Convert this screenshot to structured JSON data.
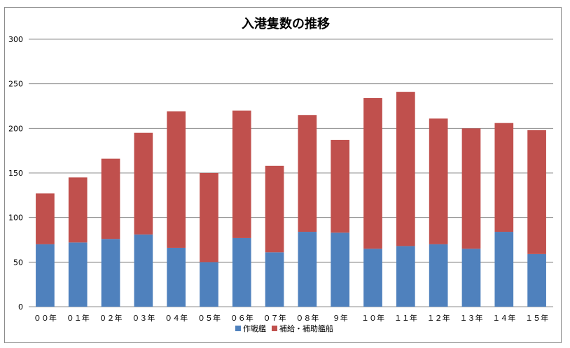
{
  "chart_data": {
    "type": "bar",
    "stacked": true,
    "title": "入港隻数の推移",
    "categories": [
      "００年",
      "０１年",
      "０２年",
      "０３年",
      "０４年",
      "０５年",
      "０６年",
      "０７年",
      "０８年",
      "９年",
      "１０年",
      "１１年",
      "１２年",
      "１３年",
      "１４年",
      "１５年"
    ],
    "series": [
      {
        "name": "作戦艦",
        "color": "#4f81bd",
        "values": [
          70,
          72,
          76,
          81,
          66,
          50,
          77,
          61,
          84,
          83,
          65,
          68,
          70,
          65,
          84,
          59
        ]
      },
      {
        "name": "補給・補助艦船",
        "color": "#c0504d",
        "values": [
          57,
          73,
          90,
          114,
          153,
          100,
          143,
          97,
          131,
          104,
          169,
          173,
          141,
          135,
          122,
          139
        ]
      }
    ],
    "ylim": [
      0,
      300
    ],
    "yticks": [
      0,
      50,
      100,
      150,
      200,
      250,
      300
    ],
    "grid": true,
    "legend": "bottom"
  }
}
